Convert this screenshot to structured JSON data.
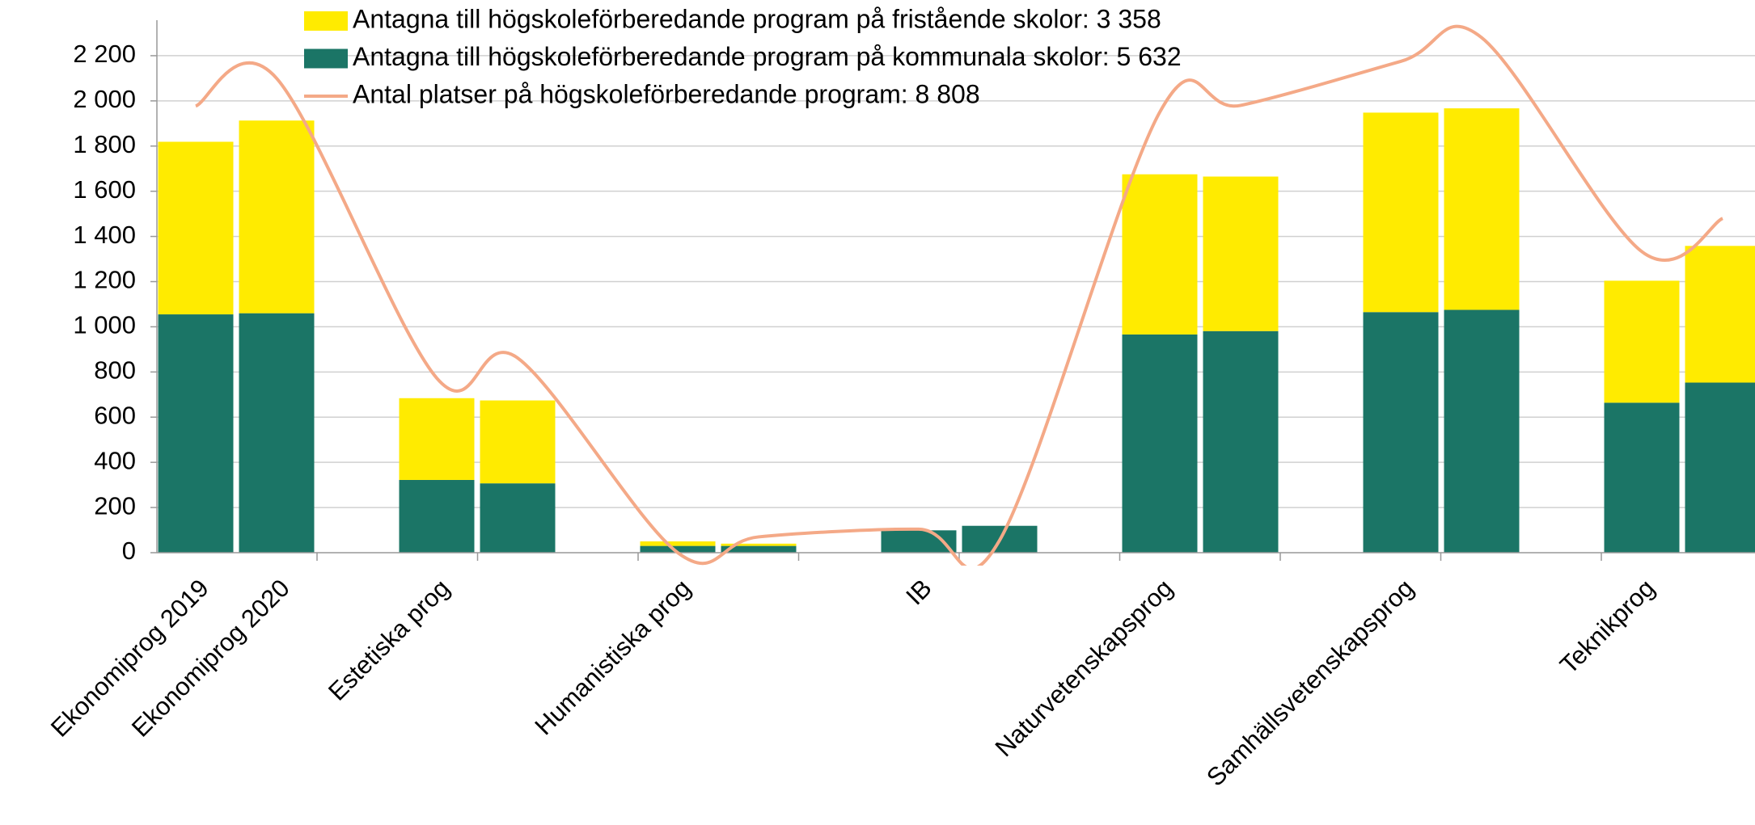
{
  "chart_data": {
    "type": "bar",
    "stacked": true,
    "categories": [
      "Ekonomiprog 2019",
      "Ekonomiprog 2020",
      "Estetiska prog",
      null,
      "Humanistiska prog",
      null,
      "IB",
      null,
      "Naturvetenskapsprog",
      null,
      "Samhällsvetenskapsprog",
      null,
      "Teknikprog",
      null
    ],
    "series": [
      {
        "name": "Antagna till högskoleförberedande program på kommunala skolor: 5 632",
        "color": "#1b7566",
        "type": "bar",
        "values": [
          1055,
          1060,
          322,
          307,
          30,
          30,
          99,
          119,
          966,
          981,
          1065,
          1075,
          664,
          753
        ]
      },
      {
        "name": "Antagna till högskoleförberedande program på fristående skolor: 3 358",
        "color": "#ffeb00",
        "type": "bar",
        "values": [
          764,
          853,
          362,
          367,
          20,
          10,
          0,
          0,
          709,
          684,
          883,
          892,
          540,
          605
        ]
      },
      {
        "name": "Antal platser på högskoleförberedande program: 8 808",
        "color": "#f4a987",
        "type": "line",
        "values": [
          1977,
          2100,
          773,
          862,
          0,
          70,
          104,
          55,
          1950,
          1980,
          2175,
          2280,
          1333,
          1480
        ]
      }
    ],
    "legend_order": [
      1,
      0,
      2
    ],
    "ylim": [
      0,
      2350
    ],
    "yticks": [
      0,
      200,
      400,
      600,
      800,
      {
        "value": 1000,
        "label": "1 000"
      },
      {
        "value": 1200,
        "label": "1 200"
      },
      {
        "value": 1400,
        "label": "1 400"
      },
      {
        "value": 1600,
        "label": "1 600"
      },
      {
        "value": 1800,
        "label": "1 800"
      },
      {
        "value": 2000,
        "label": "2 000"
      },
      {
        "value": 2200,
        "label": "2 200"
      }
    ],
    "grid": true
  }
}
